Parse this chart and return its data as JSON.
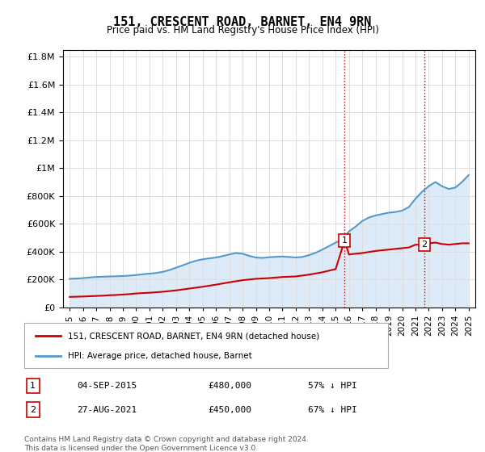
{
  "title": "151, CRESCENT ROAD, BARNET, EN4 9RN",
  "subtitle": "Price paid vs. HM Land Registry's House Price Index (HPI)",
  "footnote": "Contains HM Land Registry data © Crown copyright and database right 2024.\nThis data is licensed under the Open Government Licence v3.0.",
  "legend_entry1": "151, CRESCENT ROAD, BARNET, EN4 9RN (detached house)",
  "legend_entry2": "HPI: Average price, detached house, Barnet",
  "transaction1_label": "1",
  "transaction1_date": "04-SEP-2015",
  "transaction1_price": "£480,000",
  "transaction1_hpi": "57% ↓ HPI",
  "transaction1_year": 2015.67,
  "transaction1_value": 480000,
  "transaction2_label": "2",
  "transaction2_date": "27-AUG-2021",
  "transaction2_price": "£450,000",
  "transaction2_hpi": "67% ↓ HPI",
  "transaction2_year": 2021.65,
  "transaction2_value": 450000,
  "red_color": "#cc0000",
  "blue_color": "#5599cc",
  "blue_fill_color": "#aaccee",
  "background_color": "#f5f5f5",
  "ylim": [
    0,
    1850000
  ],
  "xlim_start": 1994.5,
  "xlim_end": 2025.5,
  "hpi_years": [
    1995,
    1995.5,
    1996,
    1996.5,
    1997,
    1997.5,
    1998,
    1998.5,
    1999,
    1999.5,
    2000,
    2000.5,
    2001,
    2001.5,
    2002,
    2002.5,
    2003,
    2003.5,
    2004,
    2004.5,
    2005,
    2005.5,
    2006,
    2006.5,
    2007,
    2007.5,
    2008,
    2008.5,
    2009,
    2009.5,
    2010,
    2010.5,
    2011,
    2011.5,
    2012,
    2012.5,
    2013,
    2013.5,
    2014,
    2014.5,
    2015,
    2015.5,
    2016,
    2016.5,
    2017,
    2017.5,
    2018,
    2018.5,
    2019,
    2019.5,
    2020,
    2020.5,
    2021,
    2021.5,
    2022,
    2022.5,
    2023,
    2023.5,
    2024,
    2024.5,
    2025
  ],
  "hpi_values": [
    205000,
    207000,
    210000,
    215000,
    218000,
    220000,
    222000,
    223000,
    225000,
    228000,
    232000,
    238000,
    242000,
    247000,
    255000,
    268000,
    285000,
    302000,
    320000,
    335000,
    345000,
    352000,
    358000,
    368000,
    380000,
    390000,
    385000,
    370000,
    358000,
    355000,
    360000,
    363000,
    365000,
    362000,
    358000,
    362000,
    375000,
    392000,
    415000,
    440000,
    465000,
    490000,
    545000,
    580000,
    620000,
    645000,
    660000,
    670000,
    680000,
    685000,
    695000,
    720000,
    780000,
    830000,
    870000,
    900000,
    870000,
    850000,
    860000,
    900000,
    950000
  ],
  "red_years": [
    1995,
    1996,
    1997,
    1997.5,
    1998,
    1998.5,
    1999,
    1999.5,
    2000,
    2001,
    2002,
    2003,
    2004,
    2005,
    2006,
    2007,
    2008,
    2008.5,
    2009,
    2010,
    2011,
    2012,
    2013,
    2014,
    2015,
    2015.67,
    2016,
    2017,
    2018,
    2019,
    2020,
    2020.5,
    2021,
    2021.67,
    2022,
    2022.5,
    2023,
    2023.5,
    2024,
    2024.5,
    2025
  ],
  "red_values": [
    75000,
    78000,
    82000,
    84000,
    87000,
    89000,
    92000,
    95000,
    100000,
    105000,
    112000,
    122000,
    135000,
    148000,
    163000,
    180000,
    195000,
    200000,
    205000,
    210000,
    218000,
    222000,
    235000,
    252000,
    275000,
    480000,
    380000,
    390000,
    405000,
    415000,
    425000,
    430000,
    450000,
    450000,
    460000,
    465000,
    455000,
    450000,
    455000,
    460000,
    460000
  ]
}
